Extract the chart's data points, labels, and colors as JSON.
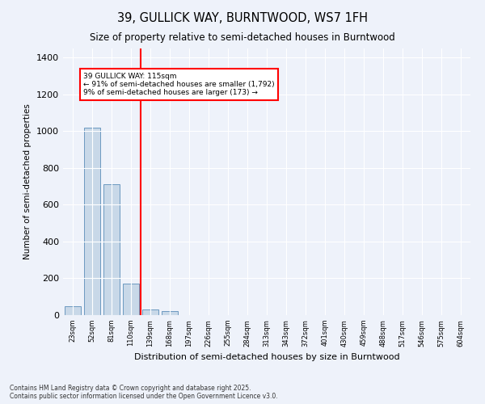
{
  "title": "39, GULLICK WAY, BURNTWOOD, WS7 1FH",
  "subtitle": "Size of property relative to semi-detached houses in Burntwood",
  "xlabel": "Distribution of semi-detached houses by size in Burntwood",
  "ylabel": "Number of semi-detached properties",
  "bar_color": "#c8d8e8",
  "bar_edge_color": "#5b8db8",
  "categories": [
    "23sqm",
    "52sqm",
    "81sqm",
    "110sqm",
    "139sqm",
    "168sqm",
    "197sqm",
    "226sqm",
    "255sqm",
    "284sqm",
    "313sqm",
    "343sqm",
    "372sqm",
    "401sqm",
    "430sqm",
    "459sqm",
    "488sqm",
    "517sqm",
    "546sqm",
    "575sqm",
    "604sqm"
  ],
  "values": [
    47,
    1018,
    710,
    173,
    30,
    20,
    0,
    0,
    0,
    0,
    0,
    0,
    0,
    0,
    0,
    0,
    0,
    0,
    0,
    0,
    0
  ],
  "ylim": [
    0,
    1450
  ],
  "yticks": [
    0,
    200,
    400,
    600,
    800,
    1000,
    1200,
    1400
  ],
  "red_line_x": 3.5,
  "annotation_text": "39 GULLICK WAY: 115sqm\n← 91% of semi-detached houses are smaller (1,792)\n9% of semi-detached houses are larger (173) →",
  "background_color": "#eef2fa",
  "grid_color": "#ffffff",
  "footer": "Contains HM Land Registry data © Crown copyright and database right 2025.\nContains public sector information licensed under the Open Government Licence v3.0."
}
